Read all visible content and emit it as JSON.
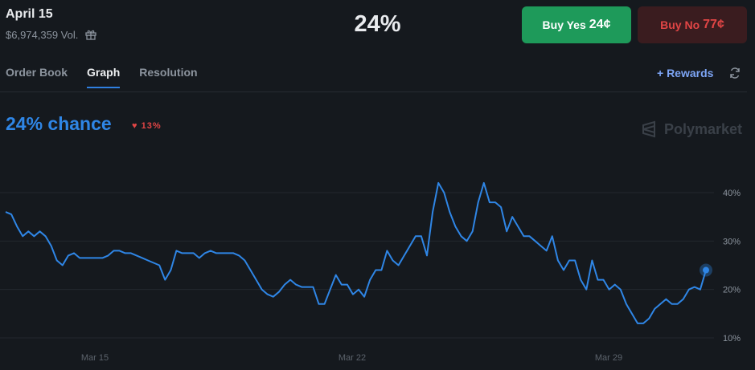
{
  "header": {
    "title": "April 15",
    "volume": "$6,974,359 Vol.",
    "big_percent": "24%"
  },
  "buttons": {
    "yes_label": "Buy Yes",
    "yes_price": "24¢",
    "no_label": "Buy No",
    "no_price": "77¢"
  },
  "tabs": [
    "Order Book",
    "Graph",
    "Resolution"
  ],
  "rewards_label": "+ Rewards",
  "chance_label": "24% chance",
  "delta_label": "♥ 13%",
  "brand_label": "Polymarket",
  "colors": {
    "accent": "#2f86e6",
    "yes": "#1e9a5a",
    "no": "#e04545"
  },
  "chart_data": {
    "type": "line",
    "x_tick_labels": [
      "Mar 15",
      "Mar 22",
      "Mar 29"
    ],
    "y_tick_labels": [
      "10%",
      "20%",
      "30%",
      "40%"
    ],
    "ylim": [
      10,
      43
    ],
    "grid": true,
    "series": [
      {
        "values": [
          36,
          35.5,
          33,
          31,
          32,
          31,
          32,
          31,
          29,
          26,
          25,
          27,
          27.5,
          26.5,
          26.5,
          26.5,
          26.5,
          26.5,
          27,
          28,
          28,
          27.5,
          27.5,
          27,
          26.5,
          26,
          25.5,
          25,
          22,
          24,
          28,
          27.5,
          27.5,
          27.5,
          26.5,
          27.5,
          28,
          27.5,
          27.5,
          27.5,
          27.5,
          27,
          26,
          24,
          22,
          20,
          19,
          18.5,
          19.5,
          21,
          22,
          21,
          20.5,
          20.5,
          20.5,
          17,
          17,
          20,
          23,
          21,
          21,
          19,
          20,
          18.5,
          22,
          24,
          24,
          28,
          26,
          25,
          27,
          29,
          31,
          31,
          27,
          36,
          42,
          40,
          36,
          33,
          31,
          30,
          32,
          38,
          42,
          38,
          38,
          37,
          32,
          35,
          33,
          31,
          31,
          30,
          29,
          28,
          31,
          26,
          24,
          26,
          26,
          22,
          20,
          26,
          22,
          22,
          20,
          21,
          20,
          17,
          15,
          13,
          13,
          14,
          16,
          17,
          18,
          17,
          17,
          18,
          20,
          20.5,
          20,
          24
        ]
      }
    ]
  }
}
